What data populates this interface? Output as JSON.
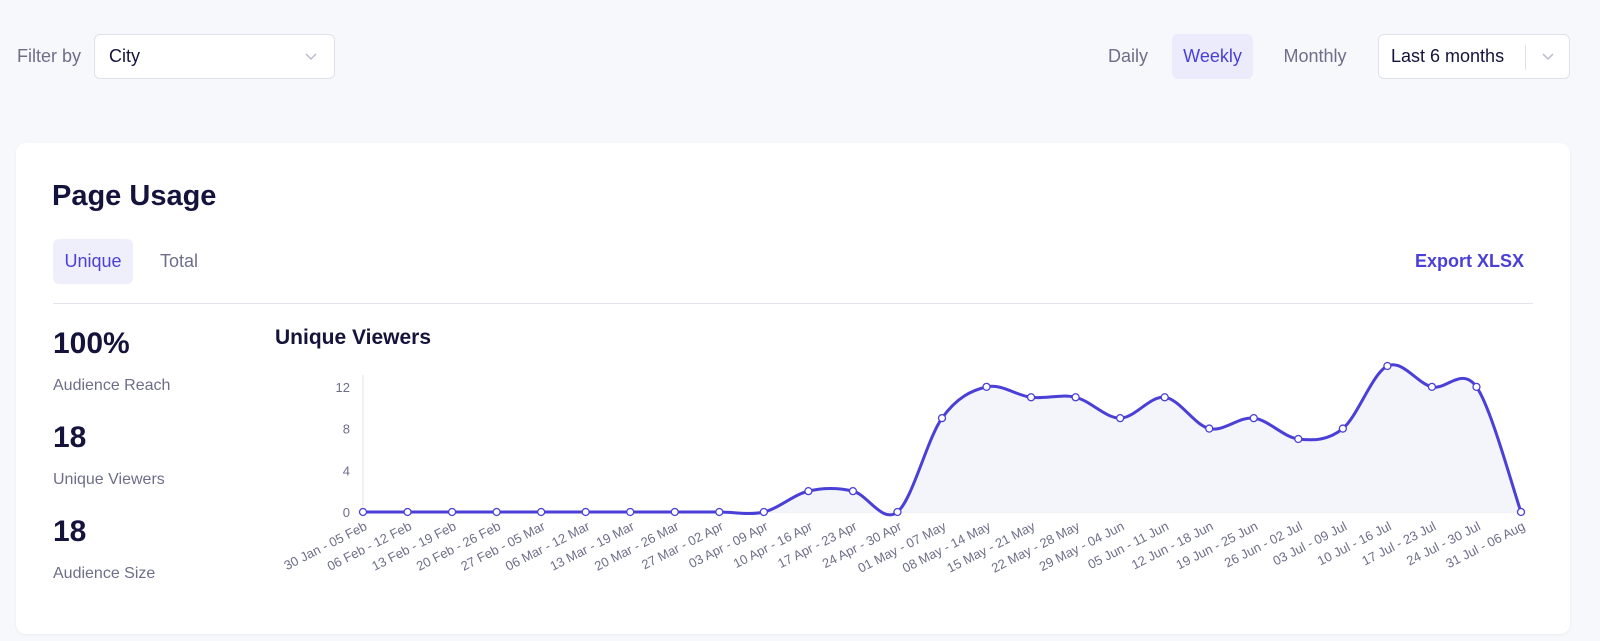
{
  "filter": {
    "label": "Filter by",
    "city_value": "City"
  },
  "periods": {
    "daily": "Daily",
    "weekly": "Weekly",
    "monthly": "Monthly",
    "selected": "Weekly"
  },
  "range_value": "Last 6 months",
  "card": {
    "title": "Page Usage",
    "tabs": {
      "unique": "Unique",
      "total": "Total",
      "selected": "Unique"
    },
    "export_label": "Export XLSX"
  },
  "stats": [
    {
      "value": "100%",
      "label": "Audience Reach"
    },
    {
      "value": "18",
      "label": "Unique Viewers"
    },
    {
      "value": "18",
      "label": "Audience Size"
    }
  ],
  "colors": {
    "accent": "#4a3fd6",
    "area_fill": "#f4f4fb",
    "text_dark": "#14133b",
    "text_muted": "#6e6e8a"
  },
  "chart_data": {
    "type": "area",
    "title": "Unique Viewers",
    "x": [
      "30 Jan - 05 Feb",
      "06 Feb - 12 Feb",
      "13 Feb - 19 Feb",
      "20 Feb - 26 Feb",
      "27 Feb - 05 Mar",
      "06 Mar - 12 Mar",
      "13 Mar - 19 Mar",
      "20 Mar - 26 Mar",
      "27 Mar - 02 Apr",
      "03 Apr - 09 Apr",
      "10 Apr - 16 Apr",
      "17 Apr - 23 Apr",
      "24 Apr - 30 Apr",
      "01 May - 07 May",
      "08 May - 14 May",
      "15 May - 21 May",
      "22 May - 28 May",
      "29 May - 04 Jun",
      "05 Jun - 11 Jun",
      "12 Jun - 18 Jun",
      "19 Jun - 25 Jun",
      "26 Jun - 02 Jul",
      "03 Jul - 09 Jul",
      "10 Jul - 16 Jul",
      "17 Jul - 23 Jul",
      "24 Jul - 30 Jul",
      "31 Jul - 06 Aug"
    ],
    "values": [
      0,
      0,
      0,
      0,
      0,
      0,
      0,
      0,
      0,
      0,
      2,
      2,
      0,
      9,
      12,
      11,
      11,
      9,
      11,
      8,
      9,
      7,
      8,
      14,
      12,
      12,
      0
    ],
    "yticks": [
      0,
      4,
      8,
      12
    ],
    "ylim": [
      0,
      14
    ],
    "grid": false
  }
}
